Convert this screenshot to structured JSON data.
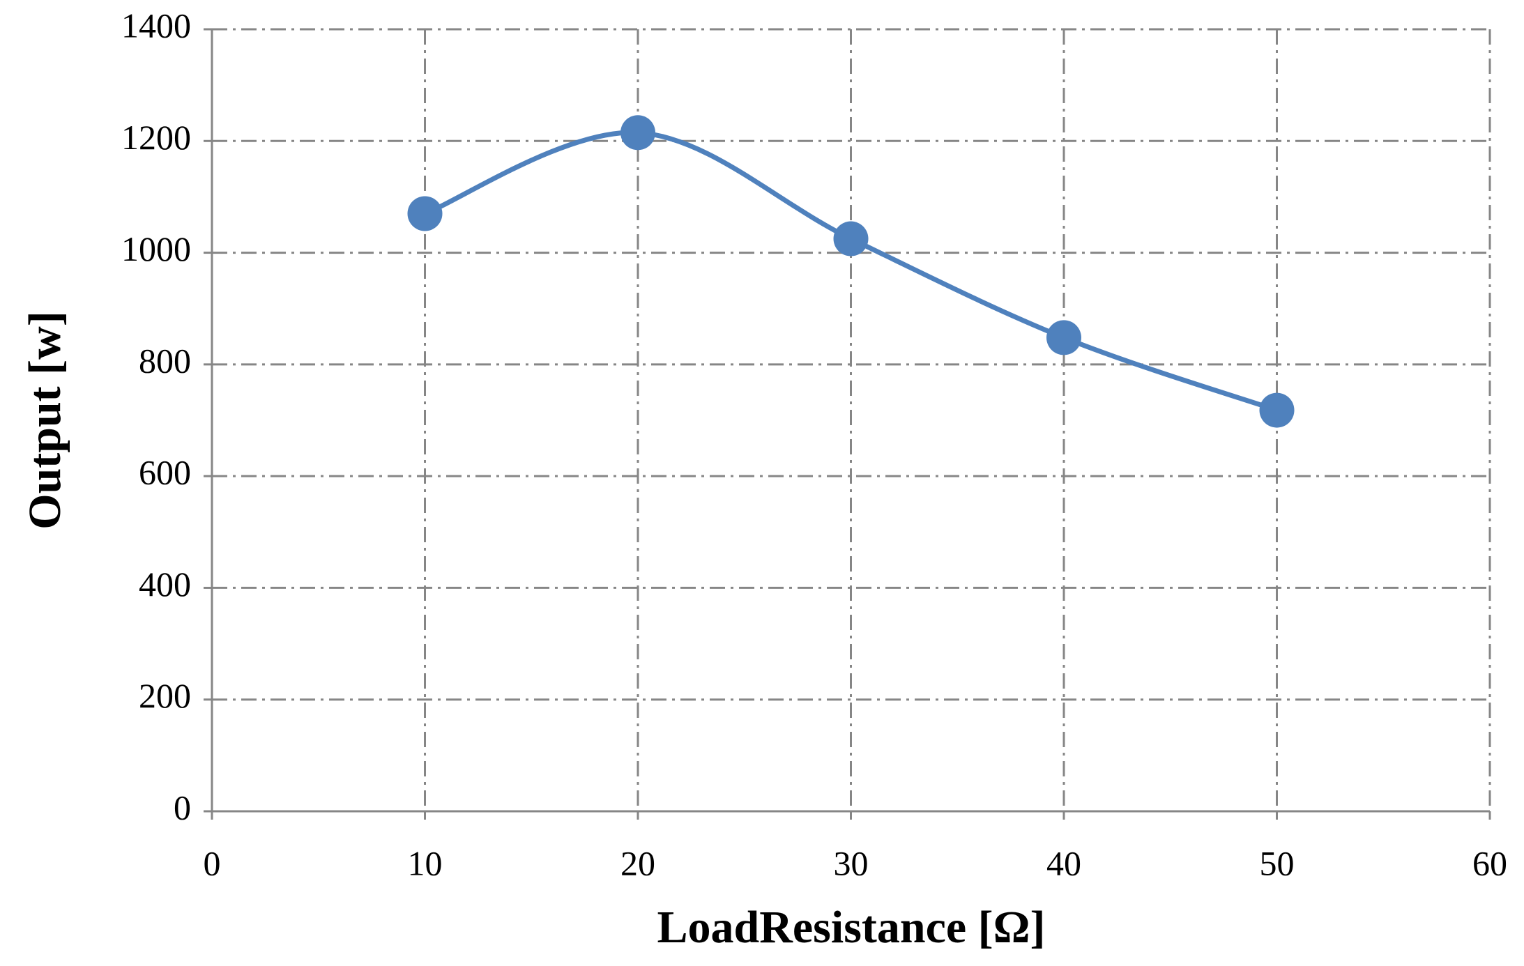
{
  "chart_data": {
    "type": "line",
    "x_label": "LoadResistance [Ω]",
    "y_label": "Output [w]",
    "x": [
      10,
      20,
      30,
      40,
      50
    ],
    "series": [
      {
        "name": "Output",
        "color": "#4f81bd",
        "values": [
          1070,
          1215,
          1025,
          848,
          718
        ]
      }
    ],
    "xlim": [
      0,
      60
    ],
    "xticks": [
      0,
      10,
      20,
      30,
      40,
      50,
      60
    ],
    "ylim": [
      0,
      1400
    ],
    "yticks": [
      0,
      200,
      400,
      600,
      800,
      1000,
      1200,
      1400
    ],
    "grid": true,
    "smooth": true
  }
}
